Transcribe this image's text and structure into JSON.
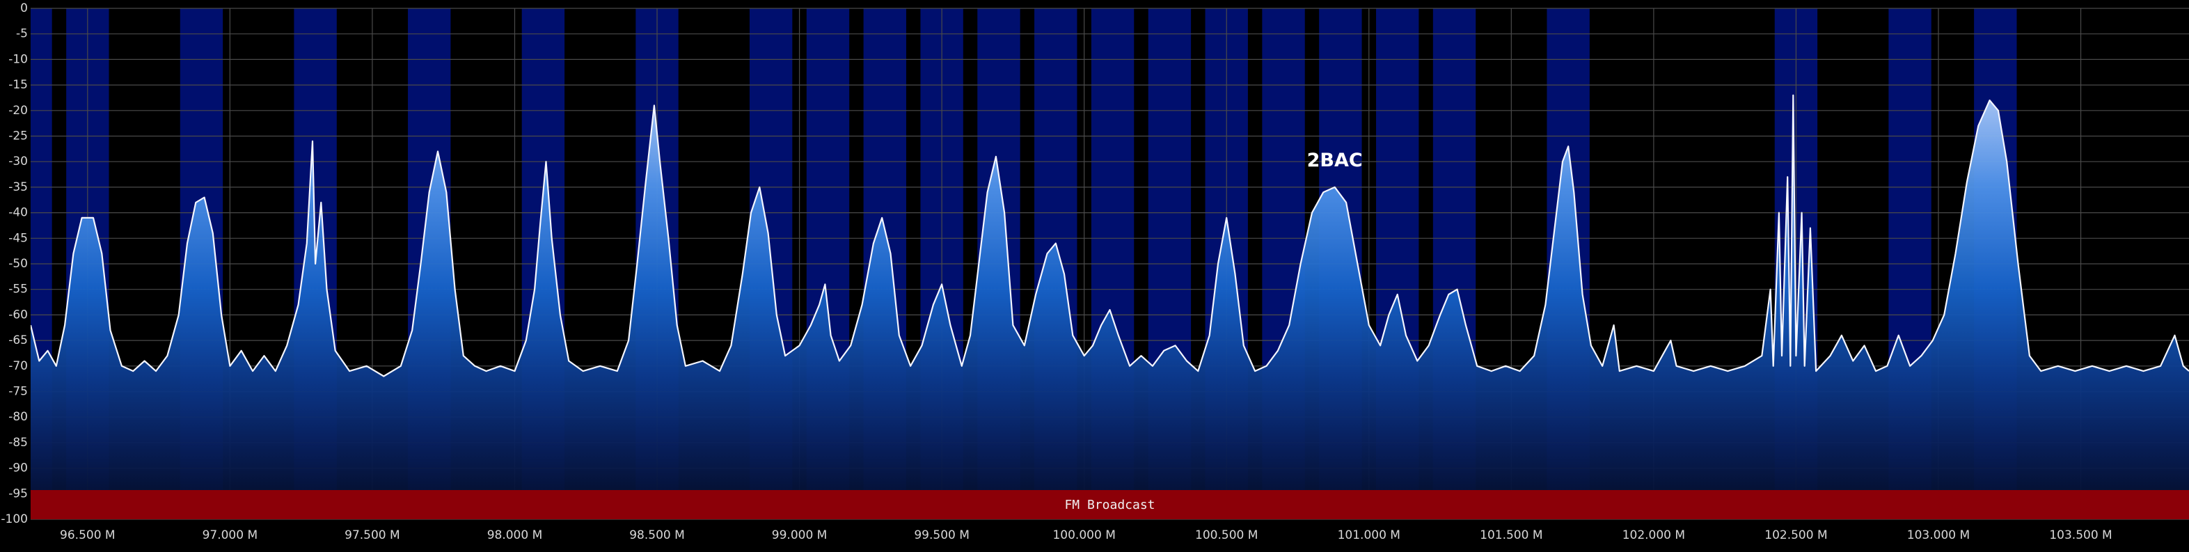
{
  "chart_data": {
    "type": "area",
    "x": [
      96.3,
      96.33,
      96.36,
      96.39,
      96.42,
      96.45,
      96.48,
      96.52,
      96.55,
      96.58,
      96.62,
      96.66,
      96.7,
      96.74,
      96.78,
      96.82,
      96.85,
      96.88,
      96.91,
      96.94,
      96.97,
      97.0,
      97.04,
      97.08,
      97.12,
      97.16,
      97.2,
      97.24,
      97.27,
      97.29,
      97.3,
      97.32,
      97.34,
      97.37,
      97.42,
      97.48,
      97.54,
      97.6,
      97.64,
      97.67,
      97.7,
      97.73,
      97.76,
      97.79,
      97.82,
      97.86,
      97.9,
      97.95,
      98.0,
      98.04,
      98.07,
      98.09,
      98.11,
      98.13,
      98.16,
      98.19,
      98.24,
      98.3,
      98.36,
      98.4,
      98.43,
      98.46,
      98.49,
      98.51,
      98.54,
      98.57,
      98.6,
      98.66,
      98.72,
      98.76,
      98.8,
      98.83,
      98.86,
      98.89,
      98.92,
      98.95,
      99.0,
      99.04,
      99.07,
      99.09,
      99.11,
      99.14,
      99.18,
      99.22,
      99.26,
      99.29,
      99.32,
      99.35,
      99.39,
      99.43,
      99.47,
      99.5,
      99.53,
      99.57,
      99.6,
      99.63,
      99.66,
      99.69,
      99.72,
      99.75,
      99.79,
      99.83,
      99.87,
      99.9,
      99.93,
      99.96,
      100.0,
      100.03,
      100.06,
      100.09,
      100.12,
      100.16,
      100.2,
      100.24,
      100.28,
      100.32,
      100.36,
      100.4,
      100.44,
      100.47,
      100.5,
      100.53,
      100.56,
      100.6,
      100.64,
      100.68,
      100.72,
      100.76,
      100.8,
      100.84,
      100.88,
      100.92,
      100.96,
      101.0,
      101.04,
      101.07,
      101.1,
      101.13,
      101.17,
      101.21,
      101.25,
      101.28,
      101.31,
      101.34,
      101.38,
      101.43,
      101.48,
      101.53,
      101.58,
      101.62,
      101.65,
      101.68,
      101.7,
      101.72,
      101.75,
      101.78,
      101.82,
      101.86,
      101.88,
      101.94,
      102.0,
      102.06,
      102.08,
      102.14,
      102.2,
      102.26,
      102.32,
      102.38,
      102.41,
      102.42,
      102.44,
      102.45,
      102.47,
      102.48,
      102.49,
      102.5,
      102.52,
      102.53,
      102.55,
      102.57,
      102.62,
      102.66,
      102.7,
      102.74,
      102.78,
      102.82,
      102.86,
      102.9,
      102.94,
      102.98,
      103.02,
      103.06,
      103.1,
      103.14,
      103.18,
      103.21,
      103.24,
      103.28,
      103.32,
      103.36,
      103.42,
      103.48,
      103.54,
      103.6,
      103.66,
      103.72,
      103.78,
      103.83,
      103.86,
      103.88
    ],
    "values": [
      -62,
      -69,
      -67,
      -70,
      -62,
      -48,
      -41,
      -41,
      -48,
      -63,
      -70,
      -71,
      -69,
      -71,
      -68,
      -60,
      -46,
      -38,
      -37,
      -44,
      -60,
      -70,
      -67,
      -71,
      -68,
      -71,
      -66,
      -58,
      -46,
      -26,
      -50,
      -38,
      -55,
      -67,
      -71,
      -70,
      -72,
      -70,
      -63,
      -50,
      -36,
      -28,
      -36,
      -55,
      -68,
      -70,
      -71,
      -70,
      -71,
      -65,
      -55,
      -42,
      -30,
      -45,
      -60,
      -69,
      -71,
      -70,
      -71,
      -65,
      -50,
      -34,
      -19,
      -30,
      -45,
      -62,
      -70,
      -69,
      -71,
      -66,
      -52,
      -40,
      -35,
      -44,
      -60,
      -68,
      -66,
      -62,
      -58,
      -54,
      -64,
      -69,
      -66,
      -58,
      -46,
      -41,
      -48,
      -64,
      -70,
      -66,
      -58,
      -54,
      -62,
      -70,
      -64,
      -50,
      -36,
      -29,
      -40,
      -62,
      -66,
      -56,
      -48,
      -46,
      -52,
      -64,
      -68,
      -66,
      -62,
      -59,
      -64,
      -70,
      -68,
      -70,
      -67,
      -66,
      -69,
      -71,
      -64,
      -50,
      -41,
      -52,
      -66,
      -71,
      -70,
      -67,
      -62,
      -50,
      -40,
      -36,
      -35,
      -38,
      -50,
      -62,
      -66,
      -60,
      -56,
      -64,
      -69,
      -66,
      -60,
      -56,
      -55,
      -62,
      -70,
      -71,
      -70,
      -71,
      -68,
      -58,
      -44,
      -30,
      -27,
      -36,
      -56,
      -66,
      -70,
      -62,
      -71,
      -70,
      -71,
      -65,
      -70,
      -71,
      -70,
      -71,
      -70,
      -68,
      -55,
      -70,
      -40,
      -68,
      -33,
      -70,
      -17,
      -68,
      -40,
      -70,
      -43,
      -71,
      -68,
      -64,
      -69,
      -66,
      -71,
      -70,
      -64,
      -70,
      -68,
      -65,
      -60,
      -48,
      -34,
      -23,
      -18,
      -20,
      -30,
      -50,
      -68,
      -71,
      -70,
      -71,
      -70,
      -71,
      -70,
      -71,
      -70,
      -64,
      -70,
      -71
    ],
    "color": "#f4f6ff",
    "xlim": [
      96.3,
      103.88
    ],
    "ylim": [
      -100,
      0
    ],
    "xticks": [
      {
        "value": 96.5,
        "label": "96.500 M"
      },
      {
        "value": 97.0,
        "label": "97.000 M"
      },
      {
        "value": 97.5,
        "label": "97.500 M"
      },
      {
        "value": 98.0,
        "label": "98.000 M"
      },
      {
        "value": 98.5,
        "label": "98.500 M"
      },
      {
        "value": 99.0,
        "label": "99.000 M"
      },
      {
        "value": 99.5,
        "label": "99.500 M"
      },
      {
        "value": 100.0,
        "label": "100.000 M"
      },
      {
        "value": 100.5,
        "label": "100.500 M"
      },
      {
        "value": 101.0,
        "label": "101.000 M"
      },
      {
        "value": 101.5,
        "label": "101.500 M"
      },
      {
        "value": 102.0,
        "label": "102.000 M"
      },
      {
        "value": 102.5,
        "label": "102.500 M"
      },
      {
        "value": 103.0,
        "label": "103.000 M"
      },
      {
        "value": 103.5,
        "label": "103.500 M"
      }
    ],
    "yticks": [
      0,
      -5,
      -10,
      -15,
      -20,
      -25,
      -30,
      -35,
      -40,
      -45,
      -50,
      -55,
      -60,
      -65,
      -70,
      -75,
      -80,
      -85,
      -90,
      -95,
      -100
    ],
    "grid": true,
    "channels": [
      96.3,
      96.5,
      96.9,
      97.3,
      97.7,
      98.1,
      98.5,
      98.9,
      99.1,
      99.3,
      99.5,
      99.7,
      99.9,
      100.1,
      100.3,
      100.5,
      100.7,
      100.9,
      101.1,
      101.3,
      101.7,
      102.5,
      102.9,
      103.2
    ],
    "channel_width": 0.15,
    "channel_color": "#000f6e",
    "band_label": "FM Broadcast",
    "band_color": "#8c0008",
    "annotations": [
      {
        "text": "2BAC",
        "x": 100.88,
        "y": -32
      }
    ]
  }
}
